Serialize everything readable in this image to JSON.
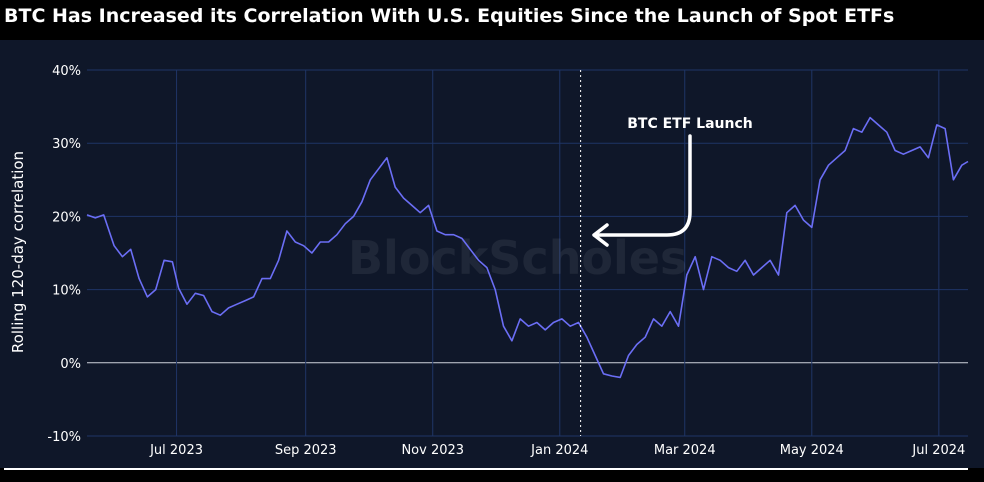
{
  "title": "BTC Has Increased its Correlation With U.S. Equities Since the Launch of Spot ETFs",
  "watermark": "BlockScholes",
  "colors": {
    "background": "#000000",
    "panel": "#0f1729",
    "grid": "#1f3566",
    "line": "#6b6ef5",
    "text": "#ffffff"
  },
  "chart_data": {
    "type": "line",
    "title": "BTC Has Increased its Correlation With U.S. Equities Since the Launch of Spot ETFs",
    "xlabel": "",
    "ylabel": "Rolling 120-day correlation",
    "x_range": [
      "2023-05-19",
      "2024-07-15"
    ],
    "ylim": [
      -10,
      40
    ],
    "y_ticks": [
      -10,
      0,
      10,
      20,
      30,
      40
    ],
    "y_tick_labels": [
      "-10%",
      "0%",
      "10%",
      "20%",
      "30%",
      "40%"
    ],
    "x_ticks": [
      "2023-07-01",
      "2023-09-01",
      "2023-11-01",
      "2024-01-01",
      "2024-03-01",
      "2024-05-01",
      "2024-07-01"
    ],
    "x_tick_labels": [
      "Jul 2023",
      "Sep 2023",
      "Nov 2023",
      "Jan 2024",
      "Mar 2024",
      "May 2024",
      "Jul 2024"
    ],
    "grid": true,
    "annotations": [
      {
        "text": "BTC ETF Launch",
        "x": "2024-01-11",
        "marker": "dotted-vertical-line"
      }
    ],
    "series": [
      {
        "name": "BTC vs U.S. Equities rolling 120-day correlation",
        "x": [
          "2023-05-19",
          "2023-05-23",
          "2023-05-27",
          "2023-06-01",
          "2023-06-05",
          "2023-06-09",
          "2023-06-13",
          "2023-06-17",
          "2023-06-21",
          "2023-06-25",
          "2023-06-29",
          "2023-07-02",
          "2023-07-06",
          "2023-07-10",
          "2023-07-14",
          "2023-07-18",
          "2023-07-22",
          "2023-07-26",
          "2023-07-30",
          "2023-08-03",
          "2023-08-07",
          "2023-08-11",
          "2023-08-15",
          "2023-08-19",
          "2023-08-23",
          "2023-08-27",
          "2023-08-31",
          "2023-09-04",
          "2023-09-08",
          "2023-09-12",
          "2023-09-16",
          "2023-09-20",
          "2023-09-24",
          "2023-09-28",
          "2023-10-02",
          "2023-10-06",
          "2023-10-10",
          "2023-10-14",
          "2023-10-18",
          "2023-10-22",
          "2023-10-26",
          "2023-10-30",
          "2023-11-03",
          "2023-11-07",
          "2023-11-11",
          "2023-11-15",
          "2023-11-19",
          "2023-11-23",
          "2023-11-27",
          "2023-12-01",
          "2023-12-05",
          "2023-12-09",
          "2023-12-13",
          "2023-12-17",
          "2023-12-21",
          "2023-12-25",
          "2023-12-29",
          "2024-01-02",
          "2024-01-06",
          "2024-01-10",
          "2024-01-14",
          "2024-01-18",
          "2024-01-22",
          "2024-01-26",
          "2024-01-30",
          "2024-02-03",
          "2024-02-07",
          "2024-02-11",
          "2024-02-15",
          "2024-02-19",
          "2024-02-23",
          "2024-02-27",
          "2024-03-02",
          "2024-03-06",
          "2024-03-10",
          "2024-03-14",
          "2024-03-18",
          "2024-03-22",
          "2024-03-26",
          "2024-03-30",
          "2024-04-03",
          "2024-04-07",
          "2024-04-11",
          "2024-04-15",
          "2024-04-19",
          "2024-04-23",
          "2024-04-27",
          "2024-05-01",
          "2024-05-05",
          "2024-05-09",
          "2024-05-13",
          "2024-05-17",
          "2024-05-21",
          "2024-05-25",
          "2024-05-29",
          "2024-06-02",
          "2024-06-06",
          "2024-06-10",
          "2024-06-14",
          "2024-06-18",
          "2024-06-22",
          "2024-06-26",
          "2024-06-30",
          "2024-07-04",
          "2024-07-08",
          "2024-07-12",
          "2024-07-15"
        ],
        "values": [
          20.2,
          19.8,
          20.2,
          16.0,
          14.5,
          15.5,
          11.5,
          9.0,
          10.0,
          14.0,
          13.8,
          10.2,
          8.0,
          9.5,
          9.2,
          7.0,
          6.5,
          7.5,
          8.0,
          8.5,
          9.0,
          11.5,
          11.5,
          14.0,
          18.0,
          16.5,
          16.0,
          15.0,
          16.5,
          16.5,
          17.5,
          19.0,
          20.0,
          22.0,
          25.0,
          26.5,
          28.0,
          24.0,
          22.5,
          21.5,
          20.5,
          21.5,
          18.0,
          17.5,
          17.5,
          17.0,
          15.5,
          14.0,
          13.0,
          10.0,
          5.0,
          3.0,
          6.0,
          5.0,
          5.5,
          4.5,
          5.5,
          6.0,
          5.0,
          5.5,
          3.5,
          1.0,
          -1.5,
          -1.8,
          -2.0,
          1.0,
          2.5,
          3.5,
          6.0,
          5.0,
          7.0,
          5.0,
          12.0,
          14.5,
          10.0,
          14.5,
          14.0,
          13.0,
          12.5,
          14.0,
          12.0,
          13.0,
          14.0,
          12.0,
          20.5,
          21.5,
          19.5,
          18.5,
          25.0,
          27.0,
          28.0,
          29.0,
          32.0,
          31.5,
          33.5,
          32.5,
          31.5,
          29.0,
          28.5,
          29.0,
          29.5,
          28.0,
          32.5,
          32.0,
          25.0,
          27.0,
          27.5
        ]
      }
    ]
  }
}
